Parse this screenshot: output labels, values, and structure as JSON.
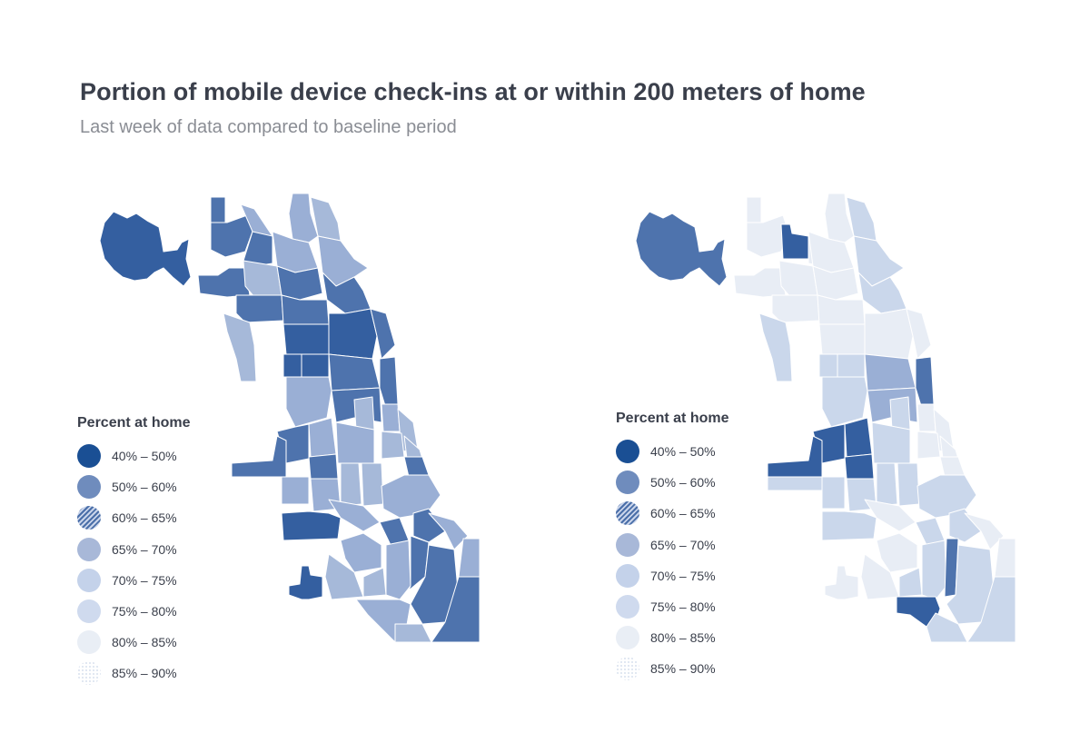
{
  "header": {
    "title": "Portion of mobile device check-ins at or within 200 meters of home",
    "subtitle": "Last week of data compared to baseline period"
  },
  "legend": {
    "title": "Percent at home",
    "items": [
      {
        "label": "40% – 50%",
        "color": "#1a4f94",
        "pattern": "solid"
      },
      {
        "label": "50% – 60%",
        "color": "#6f8cbd",
        "pattern": "solid"
      },
      {
        "label": "60% – 65%",
        "color": "#4a6fa9",
        "pattern": "hatch"
      },
      {
        "label": "65% – 70%",
        "color": "#a8b8d8",
        "pattern": "solid"
      },
      {
        "label": "70% – 75%",
        "color": "#c4d2ea",
        "pattern": "solid"
      },
      {
        "label": "75% – 80%",
        "color": "#cfdaee",
        "pattern": "solid"
      },
      {
        "label": "80% – 85%",
        "color": "#e9eef5",
        "pattern": "solid"
      },
      {
        "label": "85% – 90%",
        "color": "#dfe6f1",
        "pattern": "dots"
      }
    ]
  },
  "maps": {
    "left": {
      "region_palette": [
        "#345fa0",
        "#4e73ad",
        "#9aafd5",
        "#a6b9d9"
      ]
    },
    "right": {
      "region_palette": [
        "#345fa0",
        "#4e73ad",
        "#9aafd5",
        "#cad7eb",
        "#e8edf5"
      ]
    }
  }
}
